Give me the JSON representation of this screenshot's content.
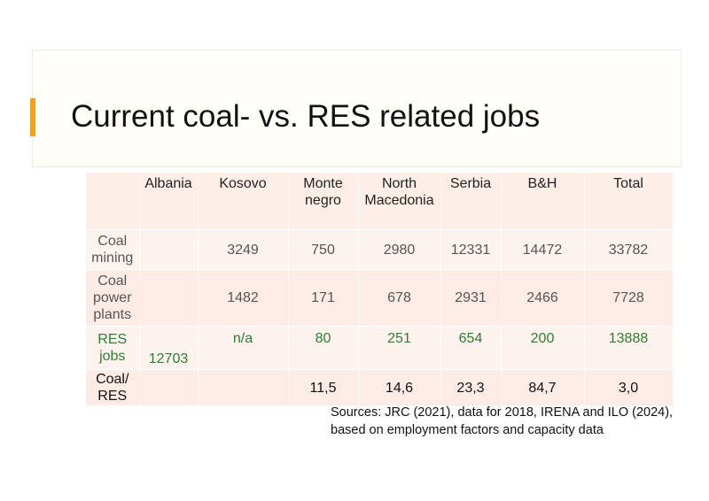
{
  "slide": {
    "title": "Current coal- vs. RES related jobs",
    "accent_color": "#f0a21a"
  },
  "table": {
    "headers": [
      "",
      "Albania",
      "Kosovo",
      "Monte negro",
      "North Macedonia",
      "Serbia",
      "B&H",
      "Total"
    ],
    "rows": [
      {
        "label": "Coal mining",
        "values": [
          "",
          "3249",
          "750",
          "2980",
          "12331",
          "14472",
          "33782"
        ]
      },
      {
        "label": "Coal power plants",
        "values": [
          "",
          "1482",
          "171",
          "678",
          "2931",
          "2466",
          "7728"
        ]
      },
      {
        "label": "RES jobs",
        "values": [
          "12703",
          "n/a",
          "80",
          "251",
          "654",
          "200",
          "13888"
        ]
      },
      {
        "label": "Coal/ RES",
        "values": [
          "",
          "",
          "11,5",
          "14,6",
          "23,3",
          "84,7",
          "3,0"
        ]
      }
    ],
    "res_color": "#2e7d32"
  },
  "sources": "Sources: JRC (2021), data for 2018, IRENA and ILO (2024), based on employment factors and capacity data"
}
